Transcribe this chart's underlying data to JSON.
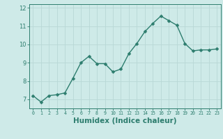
{
  "x": [
    0,
    1,
    2,
    3,
    4,
    5,
    6,
    7,
    8,
    9,
    10,
    11,
    12,
    13,
    14,
    15,
    16,
    17,
    18,
    19,
    20,
    21,
    22,
    23
  ],
  "y": [
    7.2,
    6.85,
    7.2,
    7.25,
    7.35,
    8.15,
    9.0,
    9.35,
    8.95,
    8.95,
    8.5,
    8.65,
    9.5,
    10.05,
    10.7,
    11.15,
    11.55,
    11.3,
    11.05,
    10.05,
    9.65,
    9.7,
    9.7,
    9.75
  ],
  "line_color": "#2d7d6e",
  "marker_color": "#2d7d6e",
  "bg_color": "#ceeae8",
  "grid_color": "#b8d8d6",
  "axis_color": "#2d7d6e",
  "xlabel": "Humidex (Indice chaleur)",
  "xlabel_fontsize": 7.5,
  "ylim": [
    6.5,
    12.2
  ],
  "yticks": [
    7,
    8,
    9,
    10,
    11,
    12
  ],
  "xticks": [
    0,
    1,
    2,
    3,
    4,
    5,
    6,
    7,
    8,
    9,
    10,
    11,
    12,
    13,
    14,
    15,
    16,
    17,
    18,
    19,
    20,
    21,
    22,
    23
  ],
  "line_width": 1.0,
  "marker_size": 2.5
}
